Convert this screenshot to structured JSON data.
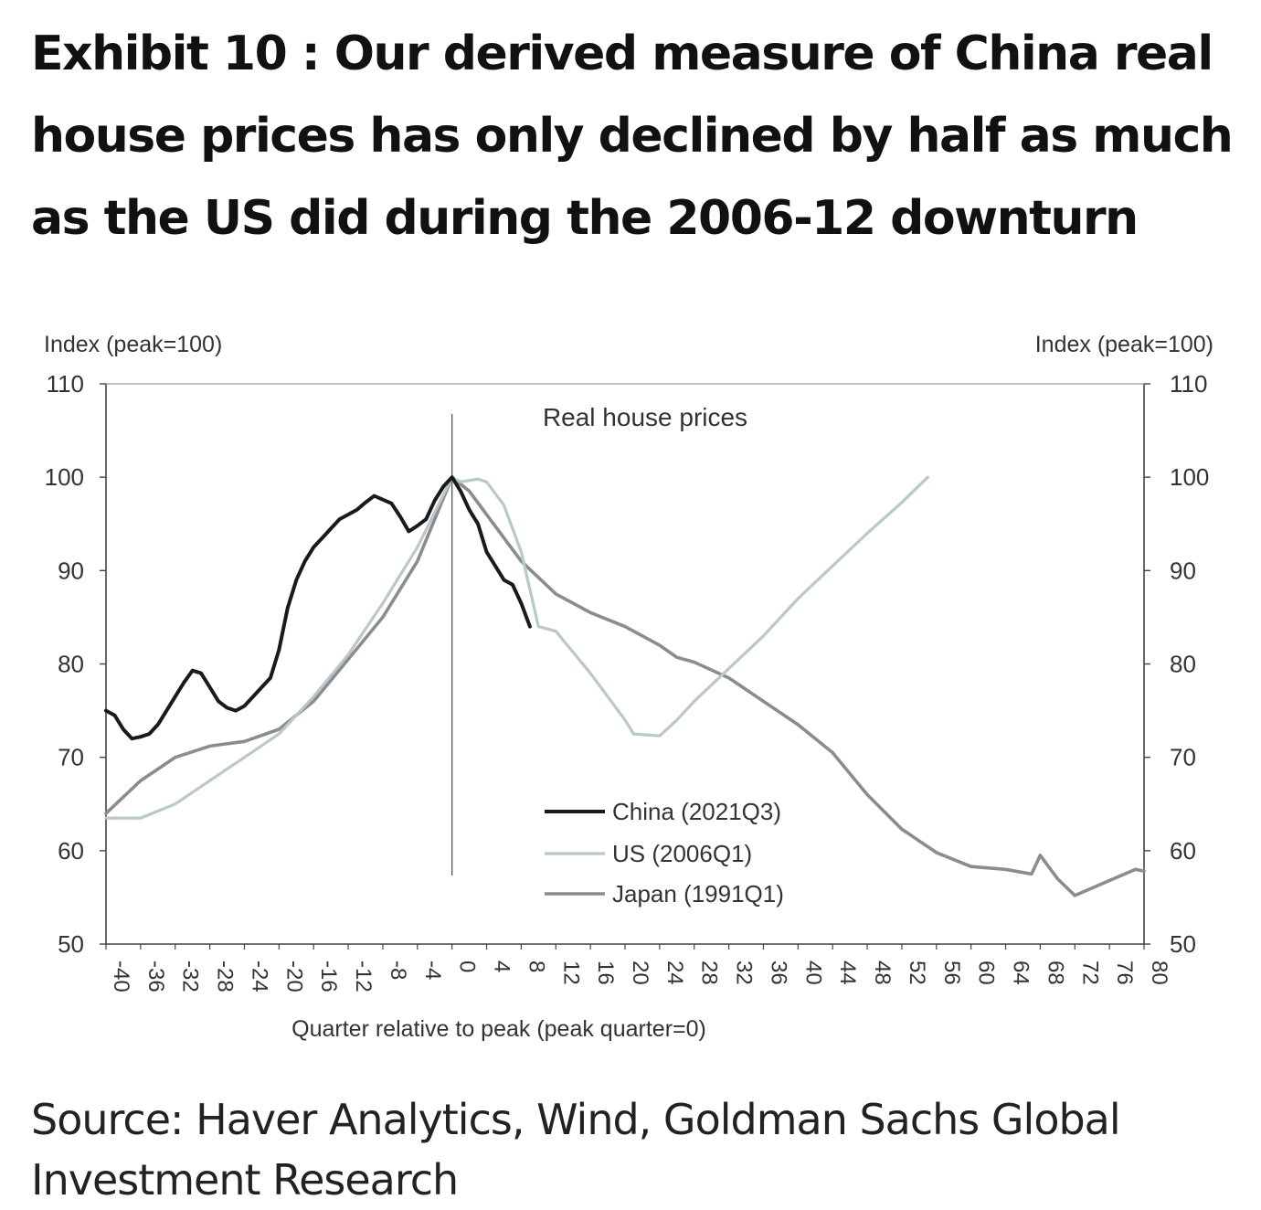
{
  "title": "Exhibit 10 : Our derived measure of China real house prices has only declined by half as much as the US did during the 2006-12 downturn",
  "source": "Source: Haver Analytics, Wind, Goldman Sachs Global Investment Research",
  "chart_data": {
    "type": "line",
    "title": "Real house prices",
    "xlabel": "Quarter relative to peak (peak quarter=0)",
    "ylabel_left": "Index (peak=100)",
    "ylabel_right": "Index (peak=100)",
    "xlim": [
      -40,
      80
    ],
    "ylim": [
      50,
      110
    ],
    "xticks": [
      -40,
      -36,
      -32,
      -28,
      -24,
      -20,
      -16,
      -12,
      -8,
      -4,
      0,
      4,
      8,
      12,
      16,
      20,
      24,
      28,
      32,
      36,
      40,
      44,
      48,
      52,
      56,
      60,
      64,
      68,
      72,
      76,
      80
    ],
    "yticks": [
      50,
      60,
      70,
      80,
      90,
      100,
      110
    ],
    "peak_marker_x": 0,
    "legend_placement": "center",
    "grid": false,
    "series": [
      {
        "name": "China (2021Q3)",
        "color": "#1a1a1a",
        "points": [
          [
            -40,
            75
          ],
          [
            -39,
            74.5
          ],
          [
            -38,
            73
          ],
          [
            -37,
            72
          ],
          [
            -36,
            72.2
          ],
          [
            -35,
            72.5
          ],
          [
            -34,
            73.5
          ],
          [
            -33,
            75
          ],
          [
            -32,
            76.5
          ],
          [
            -31,
            78
          ],
          [
            -30,
            79.3
          ],
          [
            -29,
            79
          ],
          [
            -28,
            77.5
          ],
          [
            -27,
            76
          ],
          [
            -26,
            75.3
          ],
          [
            -25,
            75
          ],
          [
            -24,
            75.5
          ],
          [
            -23,
            76.5
          ],
          [
            -22,
            77.5
          ],
          [
            -21,
            78.5
          ],
          [
            -20,
            81.5
          ],
          [
            -19,
            86
          ],
          [
            -18,
            89
          ],
          [
            -17,
            91
          ],
          [
            -16,
            92.5
          ],
          [
            -15,
            93.5
          ],
          [
            -14,
            94.5
          ],
          [
            -13,
            95.5
          ],
          [
            -12,
            96
          ],
          [
            -11,
            96.5
          ],
          [
            -10,
            97.3
          ],
          [
            -9,
            98
          ],
          [
            -8,
            97.6
          ],
          [
            -7,
            97.2
          ],
          [
            -6,
            95.8
          ],
          [
            -5,
            94.2
          ],
          [
            -4,
            94.8
          ],
          [
            -3,
            95.5
          ],
          [
            -2,
            97.5
          ],
          [
            -1,
            99
          ],
          [
            0,
            100
          ],
          [
            1,
            98.5
          ],
          [
            2,
            96.5
          ],
          [
            3,
            95
          ],
          [
            4,
            92
          ],
          [
            5,
            90.5
          ],
          [
            6,
            89
          ],
          [
            7,
            88.5
          ],
          [
            8,
            86.5
          ],
          [
            9,
            84
          ]
        ]
      },
      {
        "name": "US (2006Q1)",
        "color": "#b8c8cc",
        "points": [
          [
            -40,
            63.5
          ],
          [
            -36,
            63.5
          ],
          [
            -32,
            65
          ],
          [
            -28,
            67.5
          ],
          [
            -24,
            70
          ],
          [
            -20,
            72.5
          ],
          [
            -16,
            76.5
          ],
          [
            -12,
            81
          ],
          [
            -8,
            86.5
          ],
          [
            -4,
            92.5
          ],
          [
            0,
            100
          ],
          [
            1,
            99.5
          ],
          [
            3,
            99.8
          ],
          [
            4,
            99.5
          ],
          [
            6,
            97
          ],
          [
            8,
            92
          ],
          [
            10,
            84
          ],
          [
            12,
            83.5
          ],
          [
            16,
            79
          ],
          [
            20,
            74
          ],
          [
            21,
            72.5
          ],
          [
            24,
            72.3
          ],
          [
            26,
            74
          ],
          [
            28,
            76
          ],
          [
            32,
            79.5
          ],
          [
            36,
            83
          ],
          [
            40,
            87
          ],
          [
            44,
            90.5
          ],
          [
            48,
            94
          ],
          [
            52,
            97.3
          ],
          [
            55,
            100
          ]
        ]
      },
      {
        "name": "Japan (1991Q1)",
        "color": "#8c8c8c",
        "points": [
          [
            -40,
            64
          ],
          [
            -36,
            67.5
          ],
          [
            -32,
            70
          ],
          [
            -28,
            71.2
          ],
          [
            -24,
            71.7
          ],
          [
            -20,
            73
          ],
          [
            -16,
            76
          ],
          [
            -12,
            80.5
          ],
          [
            -8,
            85
          ],
          [
            -4,
            91
          ],
          [
            0,
            100
          ],
          [
            2,
            98.5
          ],
          [
            4,
            96
          ],
          [
            8,
            91
          ],
          [
            12,
            87.5
          ],
          [
            16,
            85.5
          ],
          [
            20,
            84
          ],
          [
            24,
            82
          ],
          [
            26,
            80.7
          ],
          [
            28,
            80.2
          ],
          [
            32,
            78.5
          ],
          [
            36,
            76
          ],
          [
            40,
            73.5
          ],
          [
            44,
            70.5
          ],
          [
            48,
            66
          ],
          [
            52,
            62.3
          ],
          [
            56,
            59.8
          ],
          [
            60,
            58.3
          ],
          [
            64,
            58
          ],
          [
            67,
            57.5
          ],
          [
            68,
            59.5
          ],
          [
            70,
            57
          ],
          [
            72,
            55.2
          ],
          [
            76,
            56.8
          ],
          [
            79,
            58
          ],
          [
            80,
            57.8
          ]
        ]
      }
    ]
  }
}
